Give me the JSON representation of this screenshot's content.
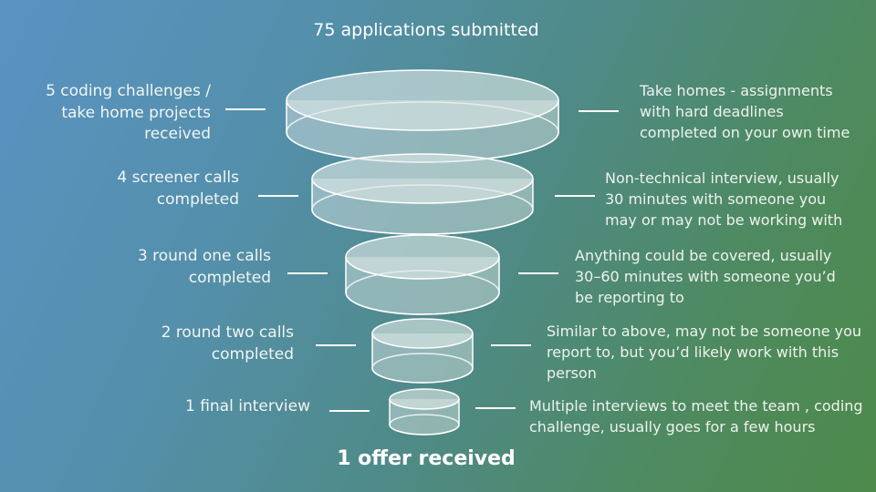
{
  "title": "75 applications submitted",
  "footer": "1 offer received",
  "colors": {
    "funnel_fill": "#dfe9e7",
    "funnel_stroke": "#ffffff",
    "connector": "#ffffff"
  },
  "stages": [
    {
      "left_lines": [
        "5 coding challenges /",
        "take home projects",
        "received"
      ],
      "right_lines": [
        "Take homes - assignments",
        "with hard deadlines",
        "completed on your own time"
      ]
    },
    {
      "left_lines": [
        "4 screener calls",
        "completed"
      ],
      "right_lines": [
        "Non-technical interview, usually",
        "30 minutes with someone you",
        "may or may not be working with"
      ]
    },
    {
      "left_lines": [
        "3 round one calls",
        "completed"
      ],
      "right_lines": [
        "Anything could be covered, usually",
        "30–60 minutes with someone you’d",
        "be reporting to"
      ]
    },
    {
      "left_lines": [
        "2 round two calls",
        "completed"
      ],
      "right_lines": [
        "Similar to above, may not be someone you",
        "report to, but you’d likely work with this",
        "person"
      ]
    },
    {
      "left_lines": [
        "1 final interview"
      ],
      "right_lines": [
        "Multiple interviews to meet the team , coding",
        "challenge, usually goes for a few hours"
      ]
    }
  ]
}
